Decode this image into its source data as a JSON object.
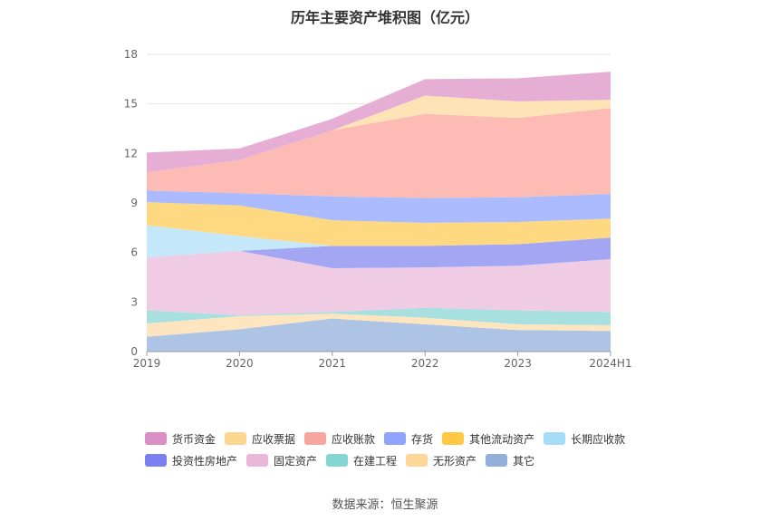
{
  "title": "历年主要资产堆积图（亿元）",
  "source_text": "数据来源：恒生聚源",
  "chart_data": {
    "type": "area",
    "stacked": true,
    "categories": [
      "2019",
      "2020",
      "2021",
      "2022",
      "2023",
      "2024H1"
    ],
    "ylim": [
      0,
      18
    ],
    "yticks": [
      0,
      3,
      6,
      9,
      12,
      15,
      18
    ],
    "grid": true,
    "legend_position": "bottom",
    "series": [
      {
        "name": "其它",
        "color": "#aec4e4",
        "values": [
          0.9,
          1.35,
          2.0,
          1.65,
          1.3,
          1.25
        ]
      },
      {
        "name": "无形资产",
        "color": "#fde5c0",
        "values": [
          0.8,
          0.8,
          0.3,
          0.4,
          0.35,
          0.35
        ]
      },
      {
        "name": "在建工程",
        "color": "#a8e0e0",
        "values": [
          0.8,
          0.05,
          0.1,
          0.6,
          0.85,
          0.8
        ]
      },
      {
        "name": "固定资产",
        "color": "#efcce4",
        "values": [
          3.2,
          3.9,
          2.65,
          2.45,
          2.7,
          3.2
        ]
      },
      {
        "name": "投资性房地产",
        "color": "#a3a6f3",
        "values": [
          0.0,
          0.0,
          1.35,
          1.3,
          1.3,
          1.3
        ]
      },
      {
        "name": "长期应收款",
        "color": "#c4e7fa",
        "values": [
          1.95,
          0.9,
          0.0,
          0.0,
          0.0,
          0.0
        ]
      },
      {
        "name": "其他流动资产",
        "color": "#fed982",
        "values": [
          1.4,
          1.85,
          1.55,
          1.4,
          1.35,
          1.15
        ]
      },
      {
        "name": "存货",
        "color": "#abbbfd",
        "values": [
          0.7,
          0.75,
          1.45,
          1.5,
          1.5,
          1.5
        ]
      },
      {
        "name": "应收账款",
        "color": "#fcbcb5",
        "values": [
          1.1,
          2.0,
          4.0,
          5.1,
          4.8,
          5.2
        ]
      },
      {
        "name": "应收票据",
        "color": "#fee3b6",
        "values": [
          0.0,
          0.0,
          0.0,
          1.1,
          1.0,
          0.5
        ]
      },
      {
        "name": "货币资金",
        "color": "#e6aed4",
        "values": [
          1.2,
          0.7,
          0.7,
          1.0,
          1.4,
          1.7
        ]
      }
    ]
  },
  "legend": [
    {
      "name": "货币资金",
      "color": "#d98ec4"
    },
    {
      "name": "应收票据",
      "color": "#fdd692"
    },
    {
      "name": "应收账款",
      "color": "#f8a79e"
    },
    {
      "name": "存货",
      "color": "#8fa5fb"
    },
    {
      "name": "其他流动资产",
      "color": "#fdc944"
    },
    {
      "name": "长期应收款",
      "color": "#a5dcf8"
    },
    {
      "name": "投资性房地产",
      "color": "#7c7ff0"
    },
    {
      "name": "固定资产",
      "color": "#e9b8d8"
    },
    {
      "name": "在建工程",
      "color": "#86d6d6"
    },
    {
      "name": "无形资产",
      "color": "#fdd699"
    },
    {
      "name": "其它",
      "color": "#93b0dc"
    }
  ]
}
